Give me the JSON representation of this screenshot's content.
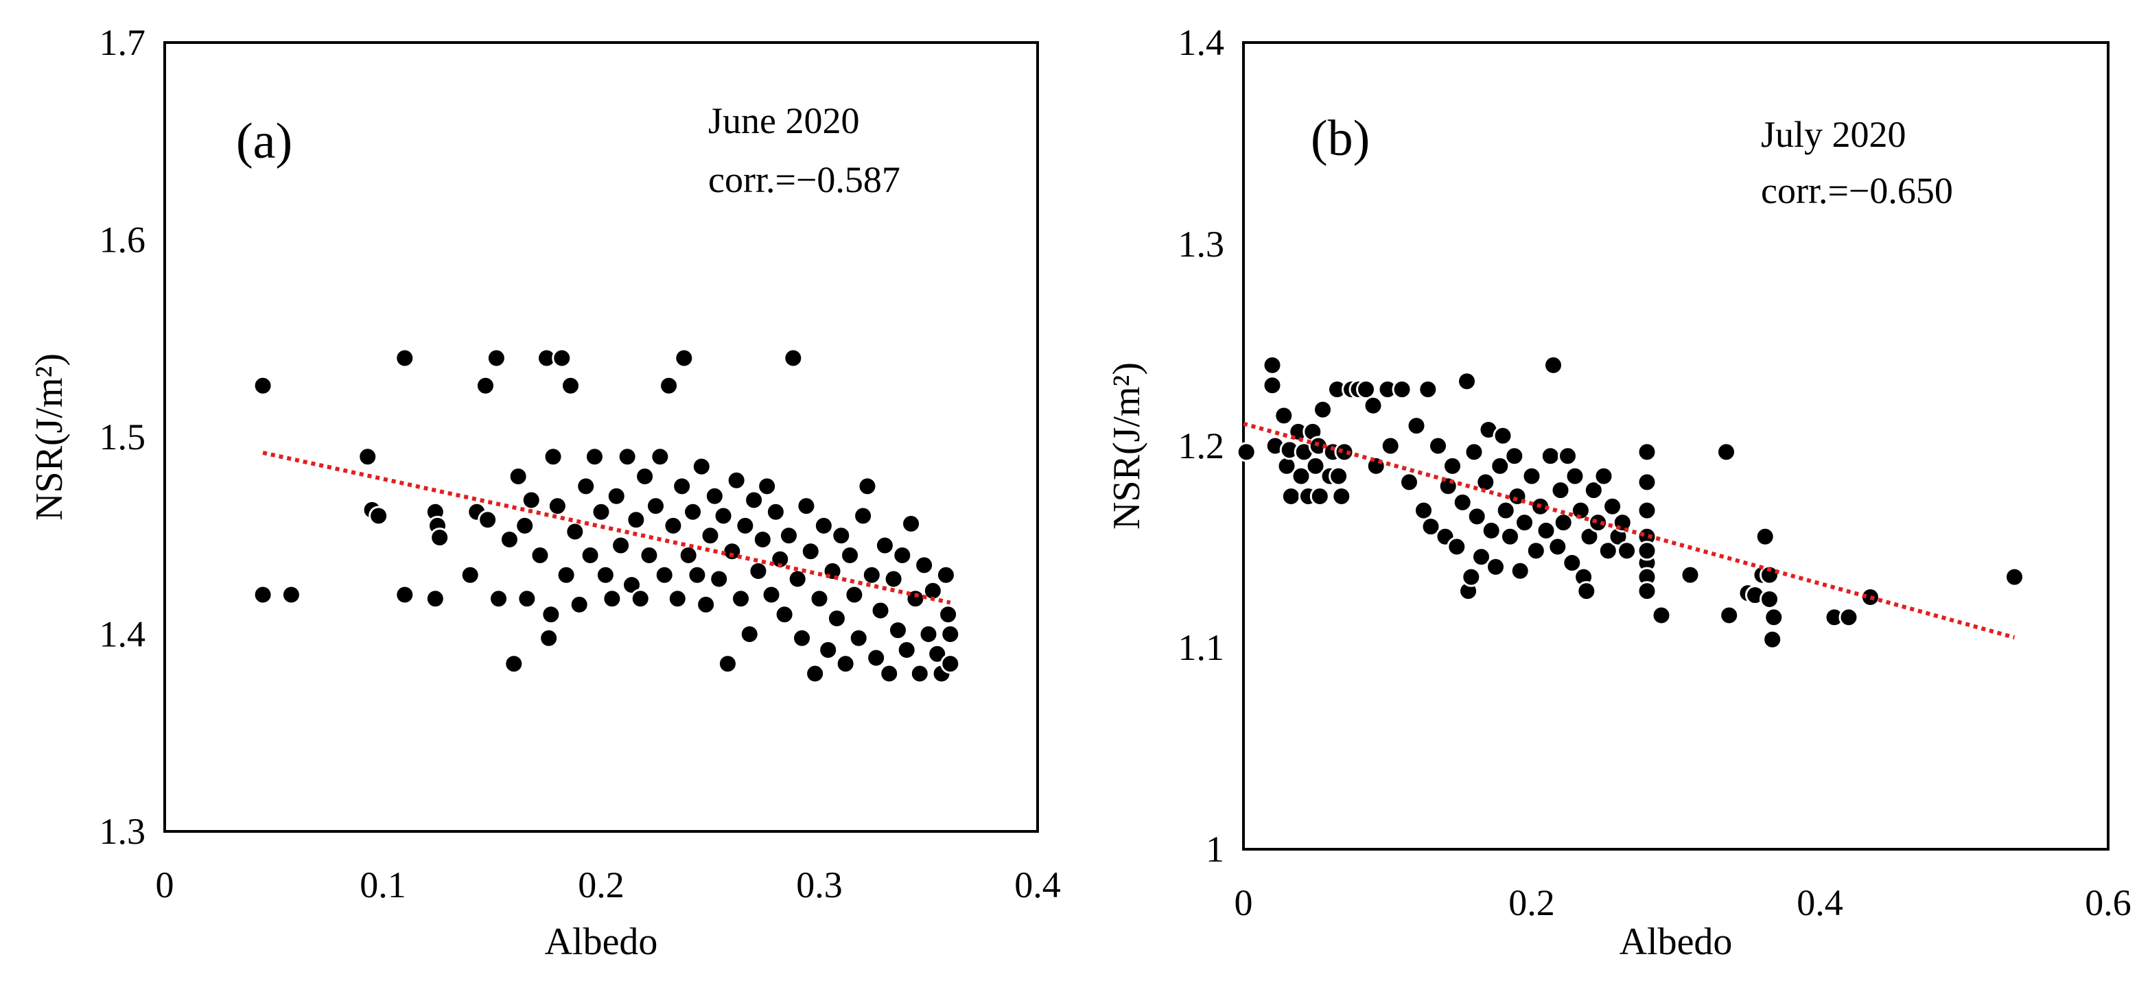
{
  "chart_data": [
    {
      "type": "scatter",
      "panel_label": "(a)",
      "title": "June 2020",
      "annotation": "corr.=−0.587",
      "correlation": -0.587,
      "xlabel": "Albedo",
      "ylabel": "NSR(J/m²)",
      "xlim": [
        0,
        0.4
      ],
      "ylim": [
        1.3,
        1.7
      ],
      "xticks": [
        0,
        0.1,
        0.2,
        0.3,
        0.4
      ],
      "xtick_labels": [
        "0",
        "0.1",
        "0.2",
        "0.3",
        "0.4"
      ],
      "yticks": [
        1.3,
        1.4,
        1.5,
        1.6,
        1.7
      ],
      "ytick_labels": [
        "1.3",
        "1.4",
        "1.5",
        "1.6",
        "1.7"
      ],
      "trendline": {
        "x": [
          0.045,
          0.36
        ],
        "y": [
          1.492,
          1.416
        ],
        "style": "dotted",
        "color": "#e02020"
      },
      "marker_color": "#000000",
      "points": [
        [
          0.045,
          1.526
        ],
        [
          0.045,
          1.42
        ],
        [
          0.058,
          1.42
        ],
        [
          0.093,
          1.49
        ],
        [
          0.095,
          1.463
        ],
        [
          0.098,
          1.46
        ],
        [
          0.11,
          1.54
        ],
        [
          0.11,
          1.42
        ],
        [
          0.124,
          1.418
        ],
        [
          0.124,
          1.462
        ],
        [
          0.125,
          1.455
        ],
        [
          0.126,
          1.449
        ],
        [
          0.14,
          1.43
        ],
        [
          0.143,
          1.462
        ],
        [
          0.147,
          1.526
        ],
        [
          0.148,
          1.458
        ],
        [
          0.152,
          1.54
        ],
        [
          0.153,
          1.418
        ],
        [
          0.158,
          1.448
        ],
        [
          0.16,
          1.385
        ],
        [
          0.162,
          1.48
        ],
        [
          0.165,
          1.455
        ],
        [
          0.166,
          1.418
        ],
        [
          0.168,
          1.468
        ],
        [
          0.172,
          1.44
        ],
        [
          0.175,
          1.54
        ],
        [
          0.176,
          1.398
        ],
        [
          0.177,
          1.41
        ],
        [
          0.178,
          1.49
        ],
        [
          0.18,
          1.465
        ],
        [
          0.182,
          1.54
        ],
        [
          0.184,
          1.43
        ],
        [
          0.186,
          1.526
        ],
        [
          0.188,
          1.452
        ],
        [
          0.19,
          1.415
        ],
        [
          0.193,
          1.475
        ],
        [
          0.195,
          1.44
        ],
        [
          0.197,
          1.49
        ],
        [
          0.2,
          1.462
        ],
        [
          0.202,
          1.43
        ],
        [
          0.205,
          1.418
        ],
        [
          0.207,
          1.47
        ],
        [
          0.209,
          1.445
        ],
        [
          0.212,
          1.49
        ],
        [
          0.214,
          1.425
        ],
        [
          0.216,
          1.458
        ],
        [
          0.218,
          1.418
        ],
        [
          0.22,
          1.48
        ],
        [
          0.222,
          1.44
        ],
        [
          0.225,
          1.465
        ],
        [
          0.227,
          1.49
        ],
        [
          0.229,
          1.43
        ],
        [
          0.231,
          1.526
        ],
        [
          0.233,
          1.455
        ],
        [
          0.235,
          1.418
        ],
        [
          0.237,
          1.475
        ],
        [
          0.238,
          1.54
        ],
        [
          0.24,
          1.44
        ],
        [
          0.242,
          1.462
        ],
        [
          0.244,
          1.43
        ],
        [
          0.246,
          1.485
        ],
        [
          0.248,
          1.415
        ],
        [
          0.25,
          1.45
        ],
        [
          0.252,
          1.47
        ],
        [
          0.254,
          1.428
        ],
        [
          0.256,
          1.46
        ],
        [
          0.258,
          1.385
        ],
        [
          0.26,
          1.442
        ],
        [
          0.262,
          1.478
        ],
        [
          0.264,
          1.418
        ],
        [
          0.266,
          1.455
        ],
        [
          0.268,
          1.4
        ],
        [
          0.27,
          1.468
        ],
        [
          0.272,
          1.432
        ],
        [
          0.274,
          1.448
        ],
        [
          0.276,
          1.475
        ],
        [
          0.278,
          1.42
        ],
        [
          0.28,
          1.462
        ],
        [
          0.282,
          1.438
        ],
        [
          0.284,
          1.41
        ],
        [
          0.286,
          1.45
        ],
        [
          0.288,
          1.54
        ],
        [
          0.29,
          1.428
        ],
        [
          0.292,
          1.398
        ],
        [
          0.294,
          1.465
        ],
        [
          0.296,
          1.442
        ],
        [
          0.298,
          1.38
        ],
        [
          0.3,
          1.418
        ],
        [
          0.302,
          1.455
        ],
        [
          0.304,
          1.392
        ],
        [
          0.306,
          1.432
        ],
        [
          0.308,
          1.408
        ],
        [
          0.31,
          1.45
        ],
        [
          0.312,
          1.385
        ],
        [
          0.314,
          1.44
        ],
        [
          0.316,
          1.42
        ],
        [
          0.318,
          1.398
        ],
        [
          0.32,
          1.46
        ],
        [
          0.322,
          1.475
        ],
        [
          0.324,
          1.43
        ],
        [
          0.326,
          1.388
        ],
        [
          0.328,
          1.412
        ],
        [
          0.33,
          1.445
        ],
        [
          0.332,
          1.38
        ],
        [
          0.334,
          1.428
        ],
        [
          0.336,
          1.402
        ],
        [
          0.338,
          1.44
        ],
        [
          0.34,
          1.392
        ],
        [
          0.342,
          1.456
        ],
        [
          0.344,
          1.418
        ],
        [
          0.346,
          1.38
        ],
        [
          0.348,
          1.435
        ],
        [
          0.35,
          1.4
        ],
        [
          0.352,
          1.422
        ],
        [
          0.354,
          1.39
        ],
        [
          0.356,
          1.38
        ],
        [
          0.358,
          1.43
        ],
        [
          0.359,
          1.41
        ],
        [
          0.36,
          1.385
        ],
        [
          0.36,
          1.4
        ]
      ]
    },
    {
      "type": "scatter",
      "panel_label": "(b)",
      "title": "July 2020",
      "annotation": "corr.=−0.650",
      "correlation": -0.65,
      "xlabel": "Albedo",
      "ylabel": "NSR(J/m²)",
      "xlim": [
        0,
        0.6
      ],
      "ylim": [
        1.0,
        1.4
      ],
      "xticks": [
        0,
        0.2,
        0.4,
        0.6
      ],
      "xtick_labels": [
        "0",
        "0.2",
        "0.4",
        "0.6"
      ],
      "yticks": [
        1.0,
        1.1,
        1.2,
        1.3,
        1.4
      ],
      "ytick_labels": [
        "1",
        "1.1",
        "1.2",
        "1.3",
        "1.4"
      ],
      "trendline": {
        "x": [
          0,
          0.535
        ],
        "y": [
          1.211,
          1.105
        ],
        "style": "dotted",
        "color": "#e02020"
      },
      "marker_color": "#000000",
      "points": [
        [
          0.002,
          1.197
        ],
        [
          0.02,
          1.24
        ],
        [
          0.02,
          1.23
        ],
        [
          0.022,
          1.2
        ],
        [
          0.028,
          1.215
        ],
        [
          0.03,
          1.19
        ],
        [
          0.032,
          1.198
        ],
        [
          0.033,
          1.175
        ],
        [
          0.038,
          1.207
        ],
        [
          0.04,
          1.185
        ],
        [
          0.042,
          1.197
        ],
        [
          0.045,
          1.175
        ],
        [
          0.048,
          1.207
        ],
        [
          0.05,
          1.19
        ],
        [
          0.052,
          1.2
        ],
        [
          0.053,
          1.175
        ],
        [
          0.055,
          1.218
        ],
        [
          0.06,
          1.185
        ],
        [
          0.062,
          1.197
        ],
        [
          0.065,
          1.228
        ],
        [
          0.066,
          1.185
        ],
        [
          0.068,
          1.175
        ],
        [
          0.07,
          1.197
        ],
        [
          0.075,
          1.228
        ],
        [
          0.08,
          1.228
        ],
        [
          0.085,
          1.228
        ],
        [
          0.09,
          1.22
        ],
        [
          0.092,
          1.19
        ],
        [
          0.1,
          1.228
        ],
        [
          0.102,
          1.2
        ],
        [
          0.11,
          1.228
        ],
        [
          0.115,
          1.182
        ],
        [
          0.12,
          1.21
        ],
        [
          0.125,
          1.168
        ],
        [
          0.128,
          1.228
        ],
        [
          0.13,
          1.16
        ],
        [
          0.135,
          1.2
        ],
        [
          0.14,
          1.155
        ],
        [
          0.142,
          1.18
        ],
        [
          0.145,
          1.19
        ],
        [
          0.148,
          1.15
        ],
        [
          0.152,
          1.172
        ],
        [
          0.155,
          1.232
        ],
        [
          0.156,
          1.128
        ],
        [
          0.158,
          1.135
        ],
        [
          0.16,
          1.197
        ],
        [
          0.162,
          1.165
        ],
        [
          0.165,
          1.145
        ],
        [
          0.168,
          1.182
        ],
        [
          0.17,
          1.208
        ],
        [
          0.172,
          1.158
        ],
        [
          0.175,
          1.14
        ],
        [
          0.178,
          1.19
        ],
        [
          0.18,
          1.205
        ],
        [
          0.182,
          1.168
        ],
        [
          0.185,
          1.155
        ],
        [
          0.188,
          1.195
        ],
        [
          0.19,
          1.175
        ],
        [
          0.192,
          1.138
        ],
        [
          0.195,
          1.162
        ],
        [
          0.2,
          1.185
        ],
        [
          0.203,
          1.148
        ],
        [
          0.206,
          1.17
        ],
        [
          0.21,
          1.158
        ],
        [
          0.213,
          1.195
        ],
        [
          0.215,
          1.24
        ],
        [
          0.218,
          1.15
        ],
        [
          0.22,
          1.178
        ],
        [
          0.222,
          1.162
        ],
        [
          0.225,
          1.195
        ],
        [
          0.228,
          1.142
        ],
        [
          0.23,
          1.185
        ],
        [
          0.234,
          1.168
        ],
        [
          0.236,
          1.135
        ],
        [
          0.238,
          1.128
        ],
        [
          0.24,
          1.155
        ],
        [
          0.243,
          1.178
        ],
        [
          0.246,
          1.162
        ],
        [
          0.25,
          1.185
        ],
        [
          0.253,
          1.148
        ],
        [
          0.256,
          1.17
        ],
        [
          0.26,
          1.155
        ],
        [
          0.263,
          1.162
        ],
        [
          0.266,
          1.148
        ],
        [
          0.28,
          1.197
        ],
        [
          0.28,
          1.182
        ],
        [
          0.28,
          1.168
        ],
        [
          0.28,
          1.155
        ],
        [
          0.28,
          1.142
        ],
        [
          0.28,
          1.135
        ],
        [
          0.28,
          1.128
        ],
        [
          0.28,
          1.148
        ],
        [
          0.29,
          1.116
        ],
        [
          0.31,
          1.136
        ],
        [
          0.335,
          1.197
        ],
        [
          0.337,
          1.116
        ],
        [
          0.35,
          1.127
        ],
        [
          0.355,
          1.126
        ],
        [
          0.36,
          1.136
        ],
        [
          0.362,
          1.155
        ],
        [
          0.365,
          1.136
        ],
        [
          0.365,
          1.124
        ],
        [
          0.367,
          1.104
        ],
        [
          0.368,
          1.115
        ],
        [
          0.41,
          1.115
        ],
        [
          0.42,
          1.115
        ],
        [
          0.435,
          1.125
        ],
        [
          0.535,
          1.135
        ]
      ]
    }
  ]
}
